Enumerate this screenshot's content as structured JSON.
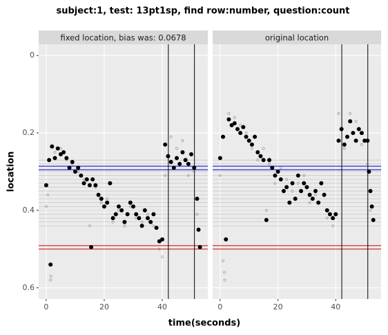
{
  "chart_data": {
    "type": "scatter",
    "title": "subject:1, test: 13pt1sp, find row:number, question:count",
    "xlabel": "time(seconds)",
    "ylabel": "location",
    "xlim": [
      -2.6,
      55.7
    ],
    "ylim": [
      -0.029,
      0.629
    ],
    "y_reversed": true,
    "xticks": [
      0,
      20,
      40
    ],
    "yticks": [
      0,
      0.2,
      0.4,
      0.6
    ],
    "grid": true,
    "vlines": [
      42.1,
      51.1
    ],
    "vline_color": "#000000",
    "hlines_blue": [
      0.286,
      0.295
    ],
    "blue_color": "#0000cc",
    "hlines_red": [
      0.491,
      0.5
    ],
    "red_color": "#cc0000",
    "hlines_gray": [
      0.27,
      0.28,
      0.3,
      0.31,
      0.32,
      0.33,
      0.34,
      0.35,
      0.36,
      0.37,
      0.38,
      0.39,
      0.4,
      0.41,
      0.42,
      0.43,
      0.44
    ],
    "gray_line_color": "#c4c4c4",
    "fixation_color": "#000000",
    "sample_color": "#9a9a9a",
    "panels": [
      {
        "strip": "fixed location, bias was: 0.0678",
        "fixations": {
          "x": [
            0,
            1,
            1.5,
            2,
            3,
            4,
            5,
            6,
            7,
            8,
            9,
            10,
            11,
            12,
            13,
            14,
            15,
            15.5,
            16,
            17,
            18,
            19,
            20,
            21,
            22,
            23,
            24,
            25,
            26,
            27,
            28,
            29,
            30,
            31,
            32,
            33,
            34,
            35,
            36,
            37,
            38,
            39,
            40,
            41,
            42,
            43,
            44,
            45,
            46,
            47,
            48,
            49,
            50,
            51,
            52,
            52.5,
            53
          ],
          "y": [
            0.335,
            0.27,
            0.54,
            0.235,
            0.265,
            0.24,
            0.255,
            0.25,
            0.265,
            0.29,
            0.275,
            0.3,
            0.29,
            0.31,
            0.33,
            0.32,
            0.335,
            0.495,
            0.32,
            0.335,
            0.36,
            0.37,
            0.39,
            0.38,
            0.33,
            0.42,
            0.41,
            0.39,
            0.4,
            0.43,
            0.41,
            0.38,
            0.39,
            0.41,
            0.42,
            0.44,
            0.4,
            0.42,
            0.43,
            0.41,
            0.445,
            0.48,
            0.475,
            0.23,
            0.26,
            0.275,
            0.29,
            0.265,
            0.28,
            0.25,
            0.27,
            0.28,
            0.255,
            0.29,
            0.37,
            0.45,
            0.495
          ]
        },
        "samples": {
          "x": [
            0,
            0.5,
            1.5,
            1.6,
            3,
            5,
            7,
            9,
            11,
            13,
            15,
            17,
            19,
            21,
            23,
            25,
            27,
            29,
            31,
            33,
            35,
            37,
            39,
            40,
            41,
            43,
            45,
            47,
            49,
            51,
            52
          ],
          "y": [
            0.39,
            0.36,
            0.58,
            0.57,
            0.25,
            0.24,
            0.27,
            0.28,
            0.3,
            0.32,
            0.44,
            0.34,
            0.38,
            0.37,
            0.43,
            0.4,
            0.44,
            0.39,
            0.42,
            0.43,
            0.41,
            0.44,
            0.5,
            0.52,
            0.31,
            0.21,
            0.24,
            0.22,
            0.31,
            0.3,
            0.41
          ]
        }
      },
      {
        "strip": "original location",
        "fixations": {
          "x": [
            0,
            1,
            2,
            3,
            4,
            5,
            6,
            7,
            8,
            9,
            10,
            11,
            12,
            13,
            14,
            15,
            16,
            17,
            18,
            19,
            20,
            21,
            22,
            23,
            24,
            25,
            26,
            27,
            28,
            29,
            30,
            31,
            32,
            33,
            34,
            35,
            36,
            37,
            38,
            39,
            40,
            41,
            42,
            43,
            44,
            45,
            46,
            47,
            48,
            49,
            50,
            51,
            51.5,
            52,
            52.5,
            53
          ],
          "y": [
            0.265,
            0.21,
            0.475,
            0.165,
            0.18,
            0.175,
            0.19,
            0.2,
            0.185,
            0.21,
            0.22,
            0.23,
            0.21,
            0.25,
            0.26,
            0.27,
            0.425,
            0.27,
            0.29,
            0.31,
            0.3,
            0.32,
            0.35,
            0.34,
            0.38,
            0.33,
            0.37,
            0.31,
            0.35,
            0.33,
            0.34,
            0.36,
            0.37,
            0.35,
            0.38,
            0.33,
            0.36,
            0.4,
            0.41,
            0.42,
            0.41,
            0.22,
            0.19,
            0.23,
            0.21,
            0.17,
            0.2,
            0.22,
            0.19,
            0.2,
            0.22,
            0.22,
            0.3,
            0.35,
            0.39,
            0.425
          ]
        },
        "samples": {
          "x": [
            0,
            1,
            1.5,
            1.6,
            3,
            5,
            7,
            9,
            11,
            13,
            15,
            16,
            17,
            19,
            21,
            23,
            25,
            27,
            29,
            31,
            33,
            35,
            37,
            39,
            41,
            43,
            45,
            47,
            49,
            51,
            52
          ],
          "y": [
            0.31,
            0.53,
            0.56,
            0.58,
            0.15,
            0.16,
            0.18,
            0.2,
            0.24,
            0.27,
            0.24,
            0.4,
            0.28,
            0.33,
            0.29,
            0.32,
            0.35,
            0.33,
            0.31,
            0.38,
            0.36,
            0.33,
            0.42,
            0.44,
            0.15,
            0.24,
            0.15,
            0.17,
            0.23,
            0.28,
            0.4
          ]
        }
      }
    ]
  }
}
